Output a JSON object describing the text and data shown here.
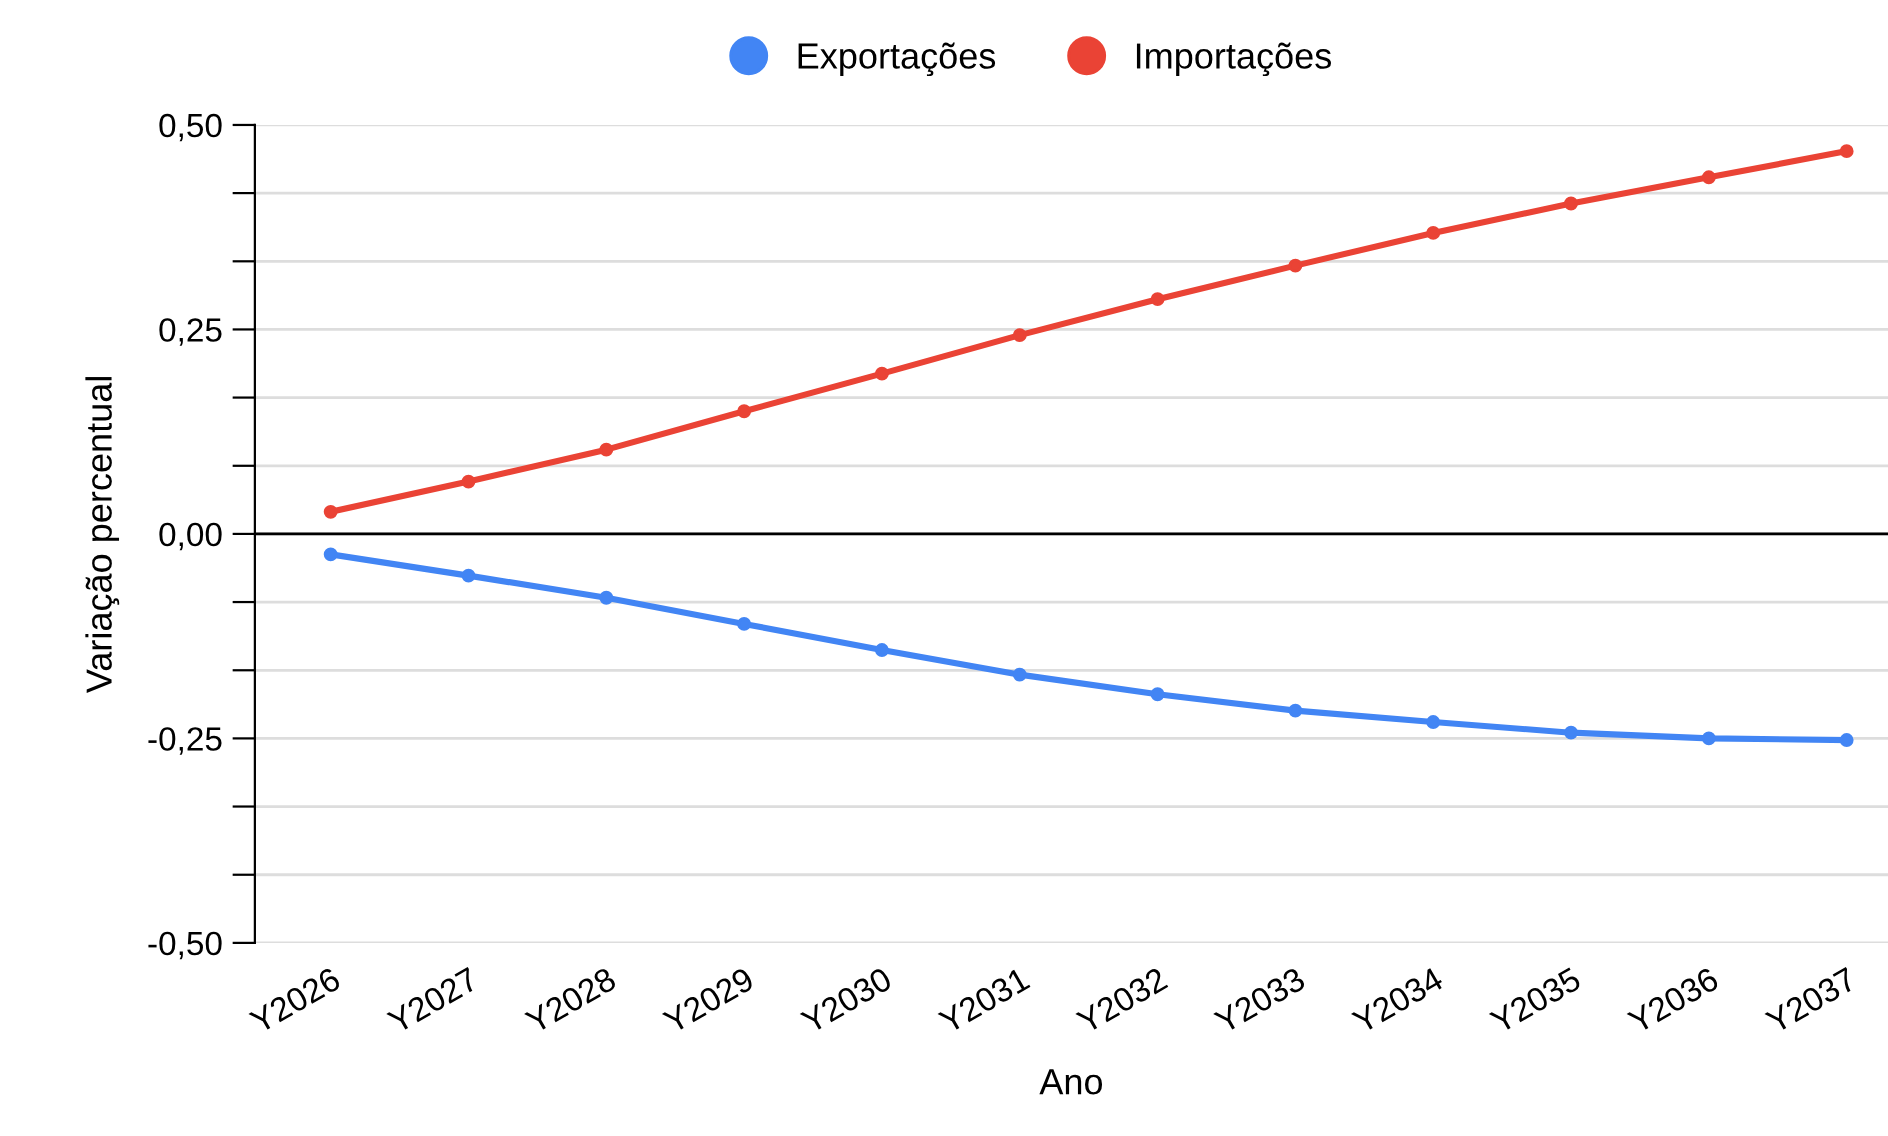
{
  "chart_data": {
    "type": "line",
    "xlabel": "Ano",
    "ylabel": "Variação percentual",
    "categories": [
      "Y2026",
      "Y2027",
      "Y2028",
      "Y2029",
      "Y2030",
      "Y2031",
      "Y2032",
      "Y2033",
      "Y2034",
      "Y2035",
      "Y2036",
      "Y2037"
    ],
    "series": [
      {
        "name": "Exportações",
        "color": "#4285f4",
        "values": [
          -0.025,
          -0.051,
          -0.078,
          -0.11,
          -0.142,
          -0.172,
          -0.196,
          -0.216,
          -0.23,
          -0.243,
          -0.25,
          -0.252
        ]
      },
      {
        "name": "Importações",
        "color": "#ea4335",
        "values": [
          0.027,
          0.064,
          0.103,
          0.15,
          0.196,
          0.243,
          0.287,
          0.328,
          0.368,
          0.404,
          0.436,
          0.468
        ]
      }
    ],
    "ylim": [
      -0.5,
      0.5
    ],
    "yticks": [
      {
        "value": -0.5,
        "label": "-0,50"
      },
      {
        "value": -0.4167,
        "label": null
      },
      {
        "value": -0.3333,
        "label": null
      },
      {
        "value": -0.25,
        "label": "-0,25"
      },
      {
        "value": -0.1667,
        "label": null
      },
      {
        "value": -0.0833,
        "label": null
      },
      {
        "value": 0,
        "label": "0,00"
      },
      {
        "value": 0.0833,
        "label": null
      },
      {
        "value": 0.1667,
        "label": null
      },
      {
        "value": 0.25,
        "label": "0,25"
      },
      {
        "value": 0.3333,
        "label": null
      },
      {
        "value": 0.4167,
        "label": null
      },
      {
        "value": 0.5,
        "label": "0,50"
      }
    ],
    "ref_lines": [
      {
        "axis": "y",
        "value": 0,
        "color": "#000000"
      }
    ],
    "grid": "y",
    "legend": "top",
    "marker": "circle",
    "line_style": "solid"
  }
}
